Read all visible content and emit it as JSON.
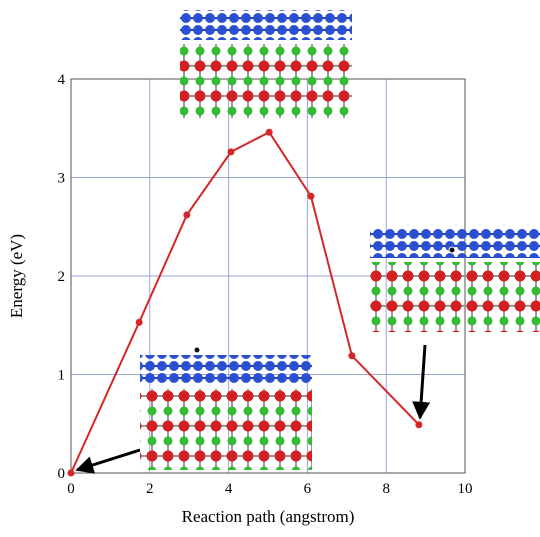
{
  "chart_data": {
    "type": "line",
    "xlabel": "Reaction path (angstrom)",
    "ylabel": "Energy (eV)",
    "x": [
      0,
      1.73,
      2.94,
      4.06,
      5.03,
      6.09,
      7.13,
      8.83
    ],
    "values": [
      0,
      1.53,
      2.62,
      3.26,
      3.46,
      2.81,
      1.19,
      0.49
    ],
    "color": "#d62728",
    "xlim": [
      0,
      10
    ],
    "ylim": [
      0,
      4
    ],
    "xticks": [
      0,
      2,
      4,
      6,
      8,
      10
    ],
    "yticks": [
      0,
      1,
      2,
      3,
      4
    ],
    "grid": true
  }
}
